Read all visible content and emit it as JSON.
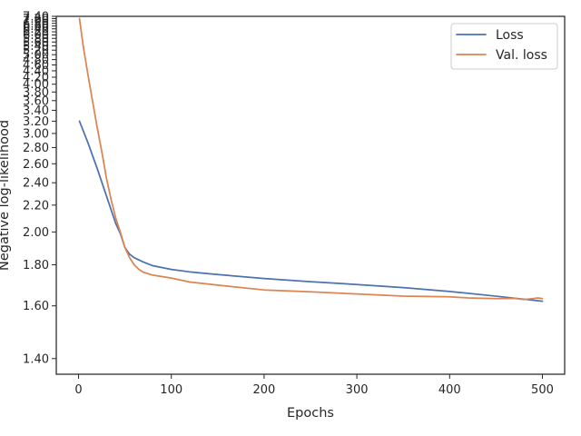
{
  "chart_data": {
    "type": "line",
    "title": "",
    "xlabel": "Epochs",
    "ylabel": "Negative log-likelihood",
    "y_scale": "reciprocal",
    "xlim": [
      -24,
      524
    ],
    "ylim": [
      1.35,
      7.4
    ],
    "grid": false,
    "legend_position": "top-right",
    "x_ticks": [
      0,
      100,
      200,
      300,
      400,
      500
    ],
    "y_ticks": [
      1.4,
      1.6,
      1.8,
      2.0,
      2.2,
      2.4,
      2.6,
      2.8,
      3.0,
      3.2,
      3.4,
      3.6,
      3.8,
      4.0,
      4.2,
      4.4,
      4.6,
      4.8,
      5.0,
      5.2,
      5.4,
      5.6,
      5.8,
      6.0,
      6.2,
      6.4,
      6.6,
      6.8,
      7.0,
      7.2,
      7.4
    ],
    "y_tick_labels": [
      "1.40",
      "1.60",
      "1.80",
      "2.00",
      "2.20",
      "2.40",
      "2.60",
      "2.80",
      "3.00",
      "3.20",
      "3.40",
      "3.60",
      "3.80",
      "4.00",
      "4.20",
      "4.40",
      "4.60",
      "4.80",
      "5.00",
      "5.20",
      "5.40",
      "5.60",
      "5.80",
      "6.00",
      "6.20",
      "6.40",
      "6.60",
      "6.80",
      "7.00",
      "7.20",
      "7.40"
    ],
    "series": [
      {
        "name": "Loss",
        "color": "#4c72b0",
        "x": [
          1,
          10,
          20,
          30,
          40,
          45,
          50,
          55,
          60,
          70,
          80,
          100,
          120,
          150,
          200,
          250,
          300,
          350,
          400,
          450,
          500
        ],
        "y": [
          3.2,
          2.87,
          2.55,
          2.28,
          2.06,
          1.99,
          1.9,
          1.86,
          1.84,
          1.815,
          1.795,
          1.775,
          1.762,
          1.748,
          1.728,
          1.712,
          1.698,
          1.683,
          1.665,
          1.643,
          1.62
        ]
      },
      {
        "name": "Val. loss",
        "color": "#dd8452",
        "x": [
          1,
          5,
          10,
          15,
          20,
          25,
          30,
          35,
          40,
          45,
          50,
          55,
          60,
          65,
          70,
          80,
          100,
          120,
          150,
          200,
          250,
          300,
          350,
          400,
          420,
          450,
          470,
          480,
          490,
          495,
          500
        ],
        "y": [
          7.2,
          5.4,
          4.3,
          3.6,
          3.1,
          2.75,
          2.45,
          2.25,
          2.1,
          2.0,
          1.9,
          1.84,
          1.8,
          1.775,
          1.76,
          1.745,
          1.73,
          1.71,
          1.695,
          1.672,
          1.663,
          1.653,
          1.643,
          1.64,
          1.635,
          1.632,
          1.633,
          1.628,
          1.632,
          1.635,
          1.632
        ]
      }
    ]
  }
}
